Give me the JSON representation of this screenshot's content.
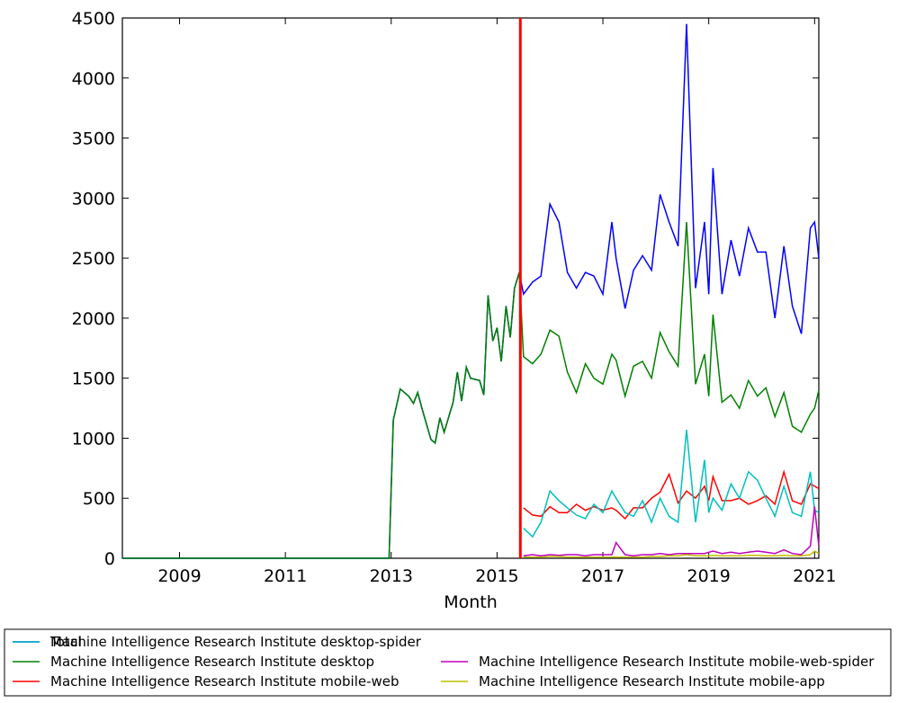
{
  "chart_data": {
    "type": "line",
    "x_label": "Month",
    "xlim": [
      2007.92,
      2021.08
    ],
    "xticks": [
      2009,
      2011,
      2013,
      2015,
      2017,
      2019,
      2021
    ],
    "ylim": [
      0,
      4500
    ],
    "yticks": [
      0,
      500,
      1000,
      1500,
      2000,
      2500,
      3000,
      3500,
      4000,
      4500
    ],
    "vline": {
      "x": 2015.44,
      "color": "#ff0000"
    },
    "legend": "bottom",
    "x": [
      2007.92,
      2012.96,
      2013.04,
      2013.17,
      2013.33,
      2013.42,
      2013.5,
      2013.58,
      2013.75,
      2013.83,
      2013.92,
      2014.0,
      2014.17,
      2014.25,
      2014.33,
      2014.42,
      2014.5,
      2014.67,
      2014.75,
      2014.83,
      2014.92,
      2015.0,
      2015.08,
      2015.17,
      2015.25,
      2015.33,
      2015.42,
      2015.5,
      2015.67,
      2015.83,
      2016.0,
      2016.17,
      2016.33,
      2016.5,
      2016.67,
      2016.83,
      2017.0,
      2017.17,
      2017.25,
      2017.42,
      2017.58,
      2017.75,
      2017.92,
      2018.08,
      2018.25,
      2018.42,
      2018.58,
      2018.75,
      2018.92,
      2019.0,
      2019.08,
      2019.25,
      2019.42,
      2019.58,
      2019.75,
      2019.92,
      2020.08,
      2020.25,
      2020.42,
      2020.58,
      2020.75,
      2020.92,
      2021.0,
      2021.08
    ],
    "series": [
      {
        "name": "Total",
        "color": "#0000ff",
        "values": [
          0,
          0,
          1150,
          1410,
          1350,
          1290,
          1380,
          1250,
          990,
          960,
          1170,
          1050,
          1300,
          1550,
          1310,
          1590,
          1500,
          1480,
          1360,
          2190,
          1810,
          1920,
          1640,
          2100,
          1840,
          2250,
          2380,
          2200,
          2300,
          2350,
          2950,
          2800,
          2380,
          2250,
          2380,
          2350,
          2200,
          2800,
          2500,
          2080,
          2400,
          2520,
          2400,
          3030,
          2800,
          2600,
          4450,
          2250,
          2800,
          2200,
          3250,
          2200,
          2650,
          2350,
          2750,
          2550,
          2550,
          2000,
          2600,
          2100,
          1870,
          2750,
          2800,
          2500
        ]
      },
      {
        "name": "Machine Intelligence Research Institute desktop",
        "color": "#008000",
        "values": [
          0,
          0,
          1150,
          1410,
          1350,
          1290,
          1380,
          1250,
          990,
          960,
          1170,
          1050,
          1300,
          1550,
          1310,
          1590,
          1500,
          1480,
          1360,
          2190,
          1810,
          1920,
          1640,
          2100,
          1840,
          2250,
          2380,
          1680,
          1620,
          1700,
          1900,
          1850,
          1550,
          1380,
          1620,
          1500,
          1450,
          1700,
          1650,
          1350,
          1600,
          1640,
          1500,
          1880,
          1720,
          1600,
          2800,
          1450,
          1700,
          1350,
          2030,
          1300,
          1360,
          1250,
          1480,
          1350,
          1420,
          1180,
          1380,
          1100,
          1050,
          1200,
          1250,
          1400
        ]
      },
      {
        "name": "Machine Intelligence Research Institute mobile-web",
        "color": "#ff0000",
        "values": [
          null,
          null,
          null,
          null,
          null,
          null,
          null,
          null,
          null,
          null,
          null,
          null,
          null,
          null,
          null,
          null,
          null,
          null,
          null,
          null,
          null,
          null,
          null,
          null,
          null,
          null,
          null,
          420,
          360,
          350,
          430,
          380,
          380,
          450,
          400,
          430,
          400,
          420,
          400,
          330,
          420,
          420,
          500,
          550,
          700,
          460,
          560,
          500,
          600,
          480,
          680,
          480,
          480,
          500,
          450,
          480,
          520,
          450,
          720,
          480,
          450,
          620,
          600,
          580
        ]
      },
      {
        "name": "Machine Intelligence Research Institute desktop-spider",
        "color": "#00bfbf",
        "values": [
          null,
          null,
          null,
          null,
          null,
          null,
          null,
          null,
          null,
          null,
          null,
          null,
          null,
          null,
          null,
          null,
          null,
          null,
          null,
          null,
          null,
          null,
          null,
          null,
          null,
          null,
          null,
          250,
          180,
          300,
          560,
          480,
          420,
          360,
          330,
          450,
          380,
          560,
          500,
          380,
          350,
          480,
          300,
          500,
          350,
          300,
          1070,
          300,
          820,
          380,
          500,
          400,
          620,
          500,
          720,
          650,
          500,
          350,
          600,
          380,
          350,
          720,
          400,
          380
        ]
      },
      {
        "name": "Machine Intelligence Research Institute mobile-web-spider",
        "color": "#bf00bf",
        "values": [
          null,
          null,
          null,
          null,
          null,
          null,
          null,
          null,
          null,
          null,
          null,
          null,
          null,
          null,
          null,
          null,
          null,
          null,
          null,
          null,
          null,
          null,
          null,
          null,
          null,
          null,
          null,
          20,
          30,
          20,
          30,
          25,
          30,
          30,
          20,
          30,
          30,
          30,
          130,
          30,
          20,
          30,
          30,
          40,
          30,
          40,
          40,
          40,
          40,
          50,
          60,
          40,
          50,
          40,
          50,
          60,
          50,
          40,
          70,
          40,
          30,
          100,
          430,
          100
        ]
      },
      {
        "name": "Machine Intelligence Research Institute mobile-app",
        "color": "#bfbf00",
        "values": [
          null,
          null,
          null,
          null,
          null,
          null,
          null,
          null,
          null,
          null,
          null,
          null,
          null,
          null,
          null,
          null,
          null,
          null,
          null,
          null,
          null,
          null,
          null,
          null,
          null,
          null,
          null,
          10,
          10,
          10,
          15,
          15,
          10,
          10,
          10,
          10,
          10,
          10,
          10,
          10,
          10,
          10,
          15,
          15,
          20,
          20,
          30,
          20,
          20,
          20,
          25,
          20,
          20,
          20,
          25,
          25,
          20,
          20,
          25,
          20,
          20,
          30,
          60,
          40
        ]
      }
    ]
  }
}
